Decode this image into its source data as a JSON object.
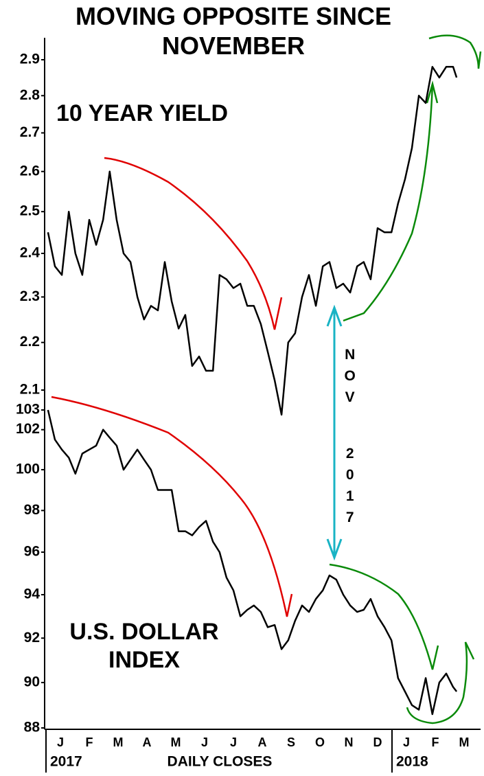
{
  "chart_data": [
    {
      "type": "line",
      "label": "10 YEAR YIELD",
      "log": true,
      "color": "#000000",
      "xlim": [
        0,
        15
      ],
      "ylim": [
        2.1,
        2.9
      ],
      "yticks": [
        2.1,
        2.2,
        2.3,
        2.4,
        2.5,
        2.6,
        2.7,
        2.8,
        2.9
      ],
      "x": [
        0.07,
        0.31,
        0.55,
        0.79,
        1.02,
        1.26,
        1.5,
        1.74,
        1.98,
        2.21,
        2.45,
        2.69,
        2.93,
        3.17,
        3.4,
        3.64,
        3.88,
        4.12,
        4.36,
        4.6,
        4.83,
        5.07,
        5.31,
        5.55,
        5.79,
        6.02,
        6.26,
        6.5,
        6.74,
        6.98,
        7.21,
        7.45,
        7.69,
        7.93,
        8.17,
        8.4,
        8.64,
        8.88,
        9.12,
        9.36,
        9.6,
        9.83,
        10.07,
        10.31,
        10.55,
        10.79,
        11.02,
        11.26,
        11.5,
        11.74,
        11.98,
        12.21,
        12.45,
        12.69,
        12.93,
        13.17,
        13.4,
        13.64,
        13.88,
        14.12,
        14.24
      ],
      "values": [
        2.45,
        2.37,
        2.35,
        2.5,
        2.4,
        2.35,
        2.48,
        2.42,
        2.48,
        2.6,
        2.48,
        2.4,
        2.38,
        2.3,
        2.25,
        2.28,
        2.27,
        2.38,
        2.29,
        2.23,
        2.26,
        2.15,
        2.17,
        2.14,
        2.14,
        2.35,
        2.34,
        2.32,
        2.33,
        2.28,
        2.28,
        2.24,
        2.18,
        2.12,
        2.05,
        2.2,
        2.22,
        2.3,
        2.35,
        2.28,
        2.37,
        2.38,
        2.32,
        2.33,
        2.31,
        2.37,
        2.38,
        2.34,
        2.46,
        2.45,
        2.45,
        2.52,
        2.58,
        2.66,
        2.8,
        2.78,
        2.88,
        2.85,
        2.88,
        2.88,
        2.85
      ]
    },
    {
      "type": "line",
      "label": "U.S. DOLLAR INDEX",
      "log": true,
      "color": "#000000",
      "xlim": [
        0,
        15
      ],
      "ylim": [
        88,
        103
      ],
      "yticks": [
        88,
        90,
        92,
        94,
        96,
        98,
        100,
        102,
        103
      ],
      "xticks": [
        {
          "value": 0.5,
          "label": "J"
        },
        {
          "value": 1.5,
          "label": "F"
        },
        {
          "value": 2.5,
          "label": "M"
        },
        {
          "value": 3.5,
          "label": "A"
        },
        {
          "value": 4.5,
          "label": "M"
        },
        {
          "value": 5.5,
          "label": "J"
        },
        {
          "value": 6.5,
          "label": "J"
        },
        {
          "value": 7.5,
          "label": "A"
        },
        {
          "value": 8.5,
          "label": "S"
        },
        {
          "value": 9.5,
          "label": "O"
        },
        {
          "value": 10.5,
          "label": "N"
        },
        {
          "value": 11.5,
          "label": "D"
        },
        {
          "value": 12.5,
          "label": "J"
        },
        {
          "value": 13.5,
          "label": "F"
        },
        {
          "value": 14.5,
          "label": "M"
        }
      ],
      "year_ticks": [
        {
          "value": 0,
          "label": "2017"
        },
        {
          "value": 12,
          "label": "2018"
        }
      ],
      "x_label": "DAILY CLOSES",
      "x": [
        0.07,
        0.31,
        0.55,
        0.79,
        1.02,
        1.26,
        1.5,
        1.74,
        1.98,
        2.21,
        2.45,
        2.69,
        2.93,
        3.17,
        3.4,
        3.64,
        3.88,
        4.12,
        4.36,
        4.6,
        4.83,
        5.07,
        5.31,
        5.55,
        5.79,
        6.02,
        6.26,
        6.5,
        6.74,
        6.98,
        7.21,
        7.45,
        7.69,
        7.93,
        8.17,
        8.4,
        8.64,
        8.88,
        9.12,
        9.36,
        9.6,
        9.83,
        10.07,
        10.31,
        10.55,
        10.79,
        11.02,
        11.26,
        11.5,
        11.74,
        11.98,
        12.21,
        12.45,
        12.69,
        12.93,
        13.17,
        13.4,
        13.64,
        13.88,
        14.12,
        14.24
      ],
      "values": [
        103,
        101.5,
        101,
        100.6,
        99.8,
        100.8,
        101,
        101.2,
        102,
        101.6,
        101.2,
        100,
        100.5,
        101,
        100.5,
        100,
        99,
        99,
        99,
        97,
        97,
        96.8,
        97.2,
        97.5,
        96.5,
        96,
        94.8,
        94.2,
        93,
        93.3,
        93.5,
        93.2,
        92.5,
        92.6,
        91.5,
        91.9,
        92.8,
        93.5,
        93.2,
        93.8,
        94.2,
        94.9,
        94.7,
        94,
        93.5,
        93.2,
        93.3,
        93.8,
        93,
        92.5,
        91.9,
        90.2,
        89.6,
        89,
        88.8,
        90.2,
        88.6,
        90,
        90.4,
        89.8,
        89.6
      ]
    }
  ],
  "title": "MOVING OPPOSITE SINCE NOVEMBER",
  "annotation": "NOV 2017"
}
